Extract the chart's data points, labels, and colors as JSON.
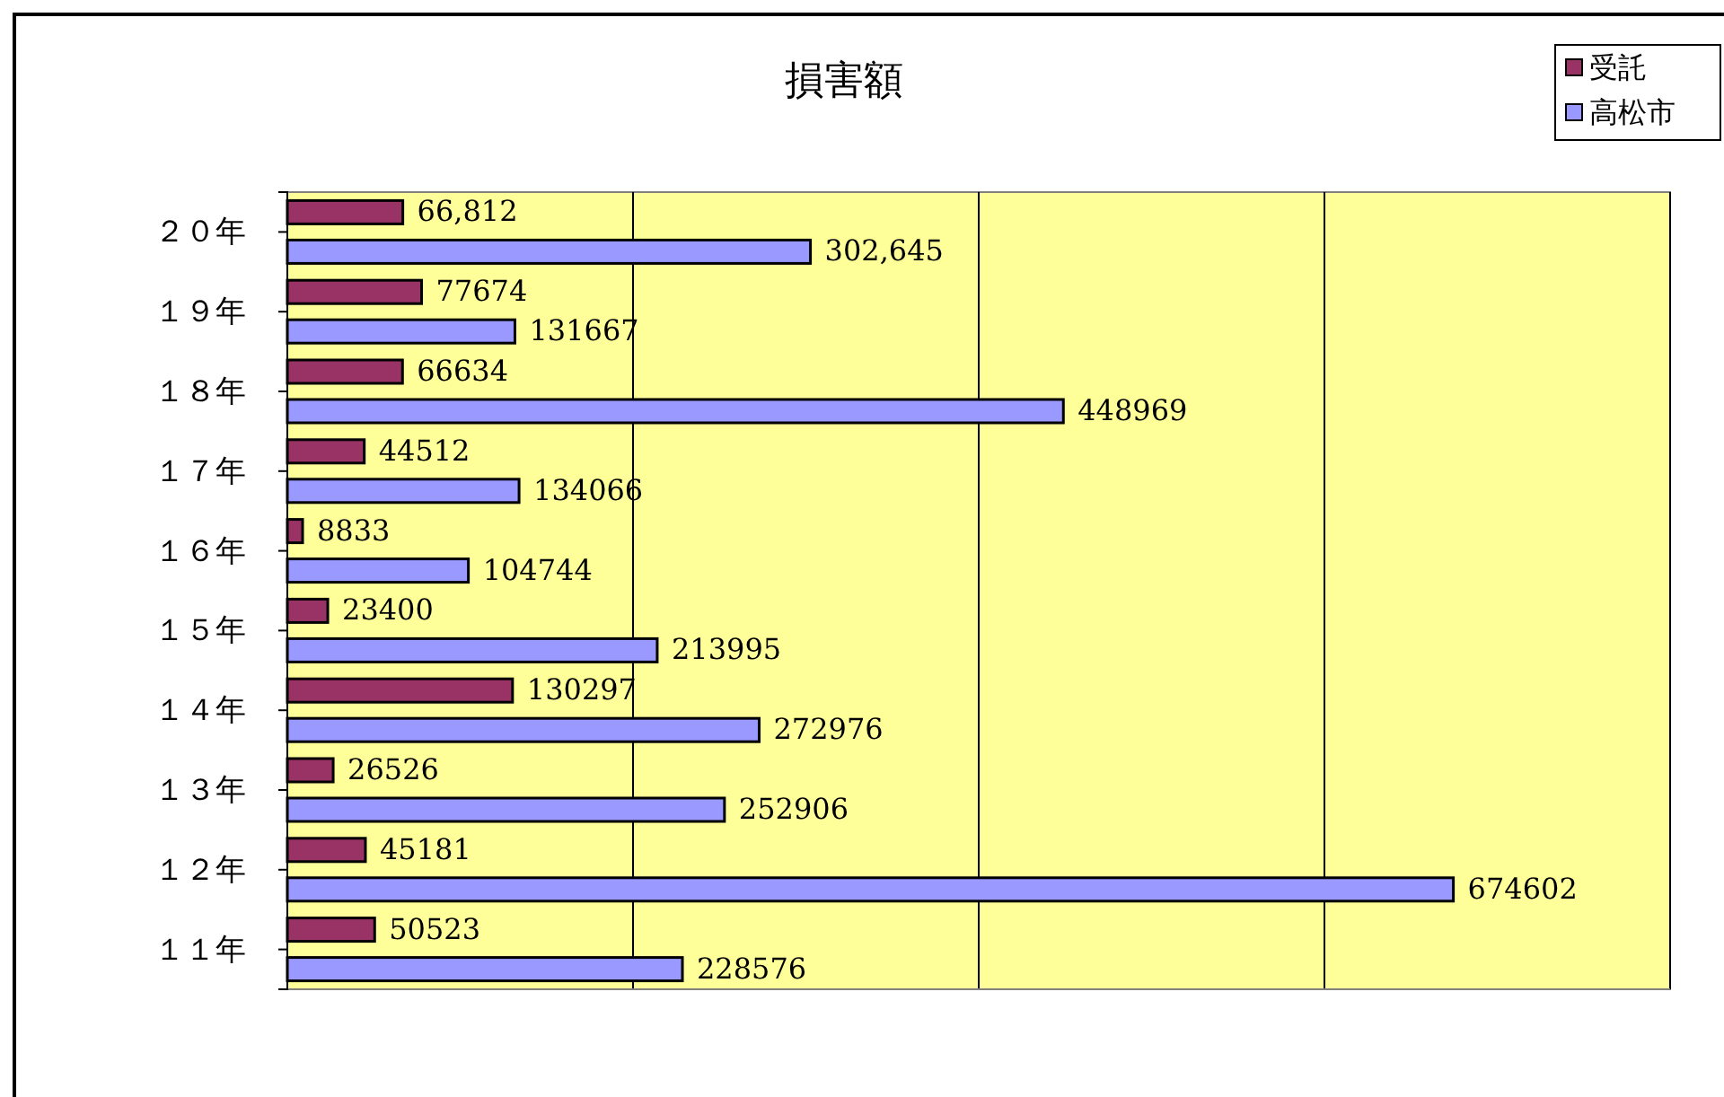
{
  "chart_data": {
    "type": "bar",
    "orientation": "horizontal",
    "title": "損害額",
    "categories": [
      "２０年",
      "１９年",
      "１８年",
      "１７年",
      "１６年",
      "１５年",
      "１４年",
      "１３年",
      "１２年",
      "１１年"
    ],
    "series": [
      {
        "name": "受託",
        "color": "#993366",
        "values": [
          66812,
          77674,
          66634,
          44512,
          8833,
          23400,
          130297,
          26526,
          45181,
          50523
        ],
        "value_labels": [
          "66,812",
          "77674",
          "66634",
          "44512",
          "8833",
          "23400",
          "130297",
          "26526",
          "45181",
          "50523"
        ]
      },
      {
        "name": "高松市",
        "color": "#9999ff",
        "values": [
          302645,
          131667,
          448969,
          134066,
          104744,
          213995,
          272976,
          252906,
          674602,
          228576
        ],
        "value_labels": [
          "302,645",
          "131667",
          "448969",
          "134066",
          "104744",
          "213995",
          "272976",
          "252906",
          "674602",
          "228576"
        ]
      }
    ],
    "xlim": [
      0,
      800000
    ],
    "xticks": [
      {
        "value": 0,
        "label": null
      },
      {
        "value": 200000,
        "label": null
      },
      {
        "value": 400000,
        "label": null
      },
      {
        "value": 600000,
        "label": null
      },
      {
        "value": 800000,
        "label": null
      }
    ],
    "tick_labels": "y",
    "grid": "x",
    "legend": "top right"
  }
}
